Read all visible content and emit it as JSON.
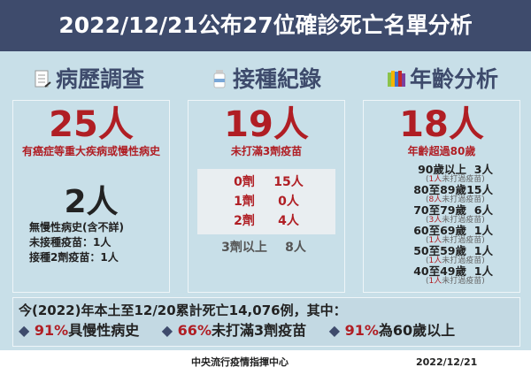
{
  "header": {
    "title": "2022/12/21公布27位確診死亡名單分析"
  },
  "sections": [
    {
      "title": "病歷調查",
      "icon": "document-icon",
      "big": "25人",
      "sub": "有癌症等重大疾病或慢性病史",
      "big2": "2人",
      "lines": [
        "無慢性病史(含不詳)",
        "未接種疫苗：1人",
        "接種2劑疫苗：1人"
      ]
    },
    {
      "title": "接種紀錄",
      "icon": "vaccine-vial-icon",
      "big": "19人",
      "sub": "未打滿3劑疫苗",
      "rows": [
        {
          "dose": "0劑",
          "count": "15人"
        },
        {
          "dose": "1劑",
          "count": "0人"
        },
        {
          "dose": "2劑",
          "count": "4人"
        }
      ],
      "extra": {
        "dose": "3劑以上",
        "count": "8人"
      }
    },
    {
      "title": "年齡分析",
      "icon": "books-icon",
      "big": "18人",
      "sub": "年齡超過80歲",
      "ages": [
        {
          "range": "90歲以上",
          "count": "3人",
          "unvax": "1人",
          "note": "未打過疫苗"
        },
        {
          "range": "80至89歲",
          "count": "15人",
          "unvax": "8人",
          "note": "未打過疫苗"
        },
        {
          "range": "70至79歲",
          "count": "6人",
          "unvax": "3人",
          "note": "未打過疫苗"
        },
        {
          "range": "60至69歲",
          "count": "1人",
          "unvax": "1人",
          "note": "未打過疫苗"
        },
        {
          "range": "50至59歲",
          "count": "1人",
          "unvax": "1人",
          "note": "未打過疫苗"
        },
        {
          "range": "40至49歲",
          "count": "1人",
          "unvax": "1人",
          "note": "未打過疫苗"
        }
      ]
    }
  ],
  "summary": {
    "line1": "今(2022)年本土至12/20累計死亡14,076例，其中：",
    "items": [
      {
        "pct": "91%",
        "text": "具慢性病史"
      },
      {
        "pct": "66%",
        "text": "未打滿3劑疫苗"
      },
      {
        "pct": "91%",
        "text": "為60歲以上"
      }
    ]
  },
  "footer": {
    "org": "中央流行疫情指揮中心",
    "date": "2022/12/21"
  },
  "colors": {
    "header": "#3e4b6c",
    "accent": "#b01e24",
    "background": "#c8dfe8"
  }
}
